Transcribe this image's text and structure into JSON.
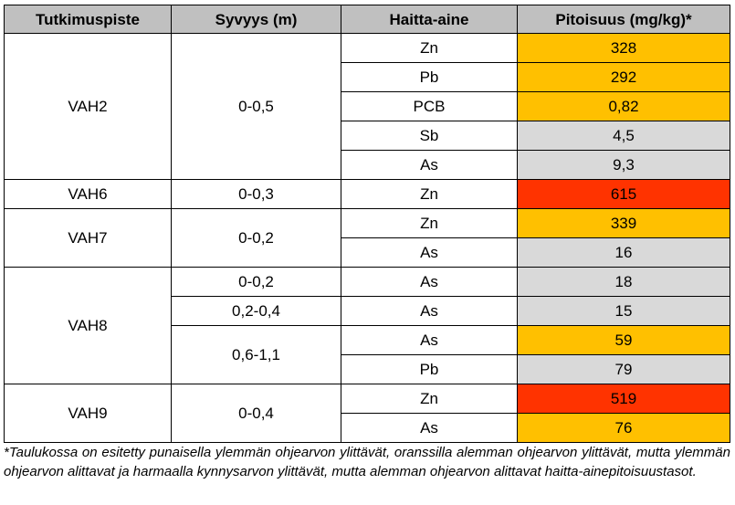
{
  "table": {
    "headers": [
      "Tutkimuspiste",
      "Syvyys (m)",
      "Haitta-aine",
      "Pitoisuus (mg/kg)*"
    ],
    "groups": [
      {
        "point": "VAH2",
        "depths": [
          {
            "depth": "0-0,5",
            "rows": [
              {
                "substance": "Zn",
                "value": "328",
                "level": "orange"
              },
              {
                "substance": "Pb",
                "value": "292",
                "level": "orange"
              },
              {
                "substance": "PCB",
                "value": "0,82",
                "level": "orange"
              },
              {
                "substance": "Sb",
                "value": "4,5",
                "level": "gray"
              },
              {
                "substance": "As",
                "value": "9,3",
                "level": "gray"
              }
            ]
          }
        ]
      },
      {
        "point": "VAH6",
        "depths": [
          {
            "depth": "0-0,3",
            "rows": [
              {
                "substance": "Zn",
                "value": "615",
                "level": "red"
              }
            ]
          }
        ]
      },
      {
        "point": "VAH7",
        "depths": [
          {
            "depth": "0-0,2",
            "rows": [
              {
                "substance": "Zn",
                "value": "339",
                "level": "orange"
              },
              {
                "substance": "As",
                "value": "16",
                "level": "gray"
              }
            ]
          }
        ]
      },
      {
        "point": "VAH8",
        "depths": [
          {
            "depth": "0-0,2",
            "rows": [
              {
                "substance": "As",
                "value": "18",
                "level": "gray"
              }
            ]
          },
          {
            "depth": "0,2-0,4",
            "rows": [
              {
                "substance": "As",
                "value": "15",
                "level": "gray"
              }
            ]
          },
          {
            "depth": "0,6-1,1",
            "rows": [
              {
                "substance": "As",
                "value": "59",
                "level": "orange"
              },
              {
                "substance": "Pb",
                "value": "79",
                "level": "gray"
              }
            ]
          }
        ]
      },
      {
        "point": "VAH9",
        "depths": [
          {
            "depth": "0-0,4",
            "rows": [
              {
                "substance": "Zn",
                "value": "519",
                "level": "red"
              },
              {
                "substance": "As",
                "value": "76",
                "level": "orange"
              }
            ]
          }
        ]
      }
    ]
  },
  "colors": {
    "red": "#ff3300",
    "orange": "#ffc000",
    "gray": "#d9d9d9",
    "header": "#c0c0c0"
  },
  "footnote": "*Taulukossa on esitetty punaisella ylemmän ohjearvon ylittävät, oranssilla alemman ohjearvon ylittävät, mutta ylemmän ohjearvon alittavat ja harmaalla kynnysarvon ylittävät, mutta alemman ohjearvon alittavat haitta-ainepitoisuustasot."
}
